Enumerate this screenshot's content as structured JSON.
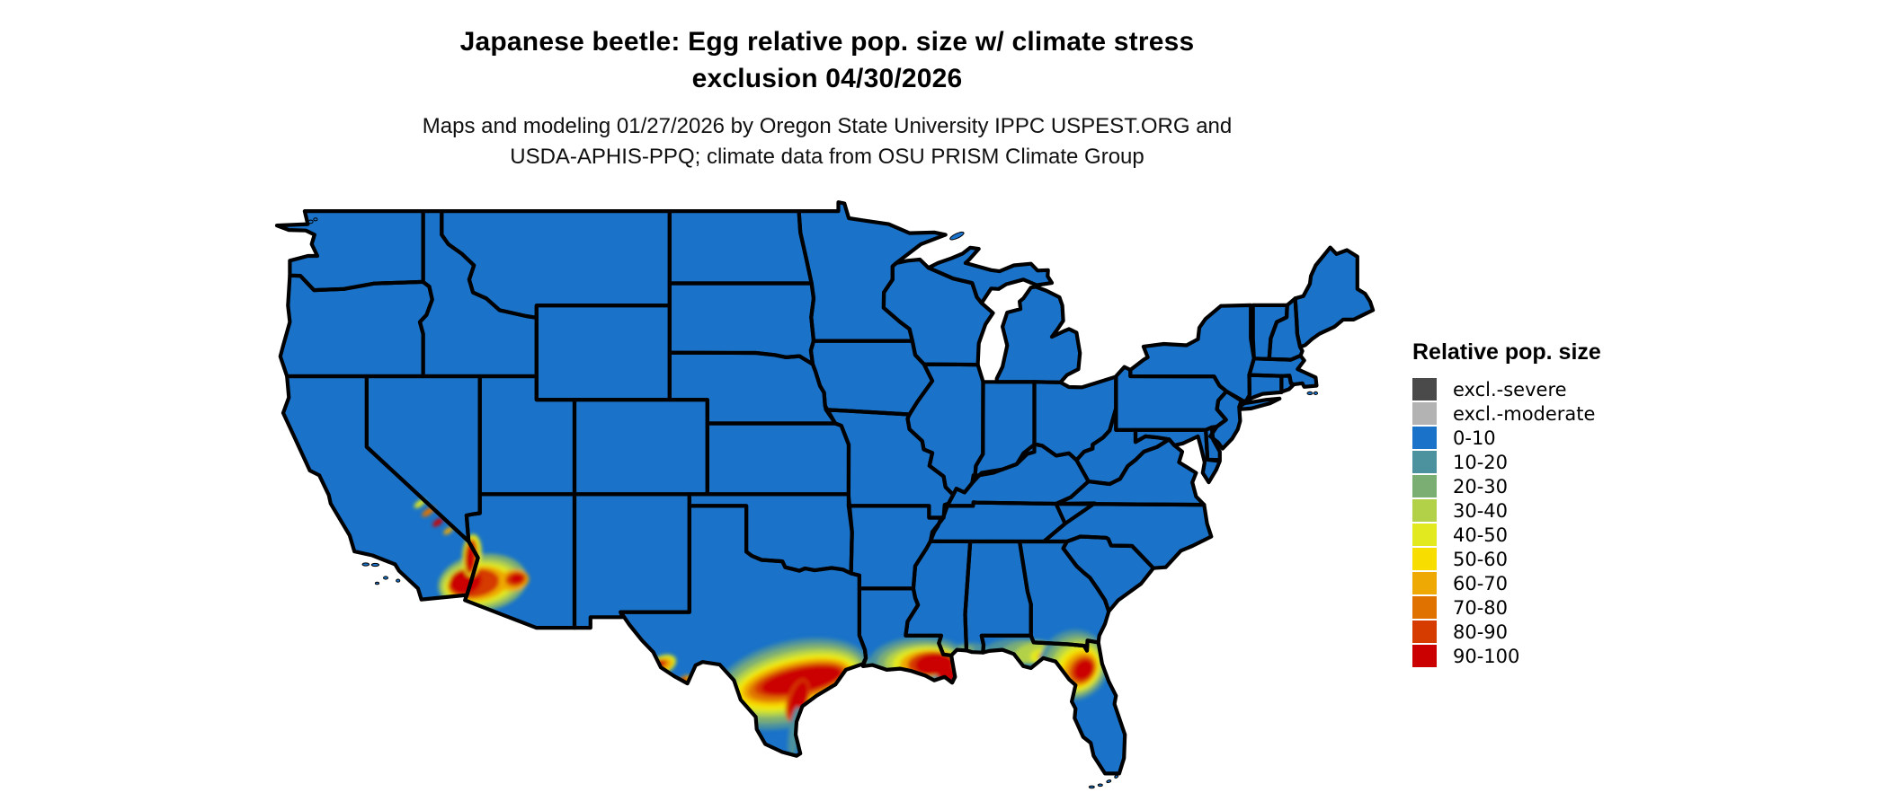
{
  "header": {
    "title_line1": "Japanese beetle: Egg relative pop. size w/ climate stress",
    "title_line2": "exclusion 04/30/2026",
    "subtitle_line1": "Maps and modeling 01/27/2026 by Oregon State University IPPC USPEST.ORG and",
    "subtitle_line2": "USDA-APHIS-PPQ; climate data from OSU PRISM Climate Group"
  },
  "legend": {
    "title": "Relative pop. size",
    "entries": [
      {
        "label": "excl.-severe",
        "color": "#4a4a4a"
      },
      {
        "label": "excl.-moderate",
        "color": "#b3b3b3"
      },
      {
        "label": "0-10",
        "color": "#1a73c9"
      },
      {
        "label": "10-20",
        "color": "#4b919e"
      },
      {
        "label": "20-30",
        "color": "#7bae73"
      },
      {
        "label": "30-40",
        "color": "#b2d148"
      },
      {
        "label": "40-50",
        "color": "#e2e91e"
      },
      {
        "label": "50-60",
        "color": "#f8dd00"
      },
      {
        "label": "60-70",
        "color": "#eea904"
      },
      {
        "label": "70-80",
        "color": "#e07300"
      },
      {
        "label": "80-90",
        "color": "#d63b00"
      },
      {
        "label": "90-100",
        "color": "#cb0000"
      }
    ]
  },
  "map": {
    "region": "contiguous United States with state borders",
    "base_value_class": "0-10",
    "base_color": "#1a73c9",
    "border_color": "#000000",
    "background": "#ffffff",
    "hotspots": [
      {
        "name": "south-texas-gulf-coast-band",
        "peak_value": "90-100",
        "layers": [
          {
            "value": "10-20",
            "color": "#4b919e",
            "lon": -97.6,
            "lat": 28.95,
            "rx": 4.3,
            "ry": 1.8,
            "rot": -14
          },
          {
            "value": "20-30",
            "color": "#7bae73",
            "lon": -97.6,
            "lat": 28.97,
            "rx": 4.0,
            "ry": 1.55,
            "rot": -14
          },
          {
            "value": "30-40",
            "color": "#b2d148",
            "lon": -97.5,
            "lat": 29.0,
            "rx": 3.65,
            "ry": 1.3,
            "rot": -14
          },
          {
            "value": "40-50",
            "color": "#e2e91e",
            "lon": -97.45,
            "lat": 29.0,
            "rx": 3.35,
            "ry": 1.1,
            "rot": -14
          },
          {
            "value": "50-60",
            "color": "#f8dd00",
            "lon": -97.4,
            "lat": 29.0,
            "rx": 3.1,
            "ry": 0.95,
            "rot": -13
          },
          {
            "value": "60-70",
            "color": "#eea904",
            "lon": -97.35,
            "lat": 29.05,
            "rx": 2.9,
            "ry": 0.82,
            "rot": -13
          },
          {
            "value": "70-80",
            "color": "#e07300",
            "lon": -97.3,
            "lat": 29.05,
            "rx": 2.65,
            "ry": 0.7,
            "rot": -13
          },
          {
            "value": "80-90",
            "color": "#d63b00",
            "lon": -97.2,
            "lat": 29.1,
            "rx": 2.4,
            "ry": 0.58,
            "rot": -12
          },
          {
            "value": "90-100",
            "color": "#cb0000",
            "lon": -97.1,
            "lat": 29.1,
            "rx": 2.15,
            "ry": 0.5,
            "rot": -12
          },
          {
            "value": "80-90",
            "color": "#d63b00",
            "lon": -97.3,
            "lat": 28.25,
            "rx": 0.55,
            "ry": 0.95,
            "rot": 18
          },
          {
            "value": "90-100",
            "color": "#cb0000",
            "lon": -97.25,
            "lat": 28.3,
            "rx": 0.4,
            "ry": 0.8,
            "rot": 18
          },
          {
            "value": "10-20",
            "color": "#4b919e",
            "lon": -97.45,
            "lat": 26.9,
            "rx": 0.3,
            "ry": 1.1,
            "rot": 8
          }
        ]
      },
      {
        "name": "rio-grande-big-bend-spots",
        "peak_value": "90-100",
        "layers": [
          {
            "value": "40-50",
            "color": "#e2e91e",
            "lon": -104.45,
            "lat": 29.75,
            "rx": 0.8,
            "ry": 0.38,
            "rot": -25
          },
          {
            "value": "60-70",
            "color": "#eea904",
            "lon": -104.45,
            "lat": 29.72,
            "rx": 0.6,
            "ry": 0.26,
            "rot": -25
          },
          {
            "value": "80-90",
            "color": "#d63b00",
            "lon": -104.55,
            "lat": 29.78,
            "rx": 0.4,
            "ry": 0.17,
            "rot": -25
          },
          {
            "value": "90-100",
            "color": "#cb0000",
            "lon": -104.65,
            "lat": 29.85,
            "rx": 0.25,
            "ry": 0.12,
            "rot": -25
          },
          {
            "value": "60-70",
            "color": "#eea904",
            "lon": -103.25,
            "lat": 29.1,
            "rx": 0.4,
            "ry": 0.18,
            "rot": -30
          },
          {
            "value": "90-100",
            "color": "#cb0000",
            "lon": -103.3,
            "lat": 29.12,
            "rx": 0.2,
            "ry": 0.1,
            "rot": -30
          }
        ]
      },
      {
        "name": "louisiana-delta",
        "peak_value": "90-100",
        "layers": [
          {
            "value": "10-20",
            "color": "#4b919e",
            "lon": -91.0,
            "lat": 30.0,
            "rx": 2.5,
            "ry": 0.95,
            "rot": -4
          },
          {
            "value": "20-30",
            "color": "#7bae73",
            "lon": -90.9,
            "lat": 29.95,
            "rx": 2.2,
            "ry": 0.8,
            "rot": -4
          },
          {
            "value": "30-40",
            "color": "#b2d148",
            "lon": -90.75,
            "lat": 29.9,
            "rx": 1.95,
            "ry": 0.7,
            "rot": -4
          },
          {
            "value": "40-50",
            "color": "#e2e91e",
            "lon": -90.6,
            "lat": 29.87,
            "rx": 1.7,
            "ry": 0.62,
            "rot": -4
          },
          {
            "value": "60-70",
            "color": "#eea904",
            "lon": -90.45,
            "lat": 29.83,
            "rx": 1.45,
            "ry": 0.55,
            "rot": -4
          },
          {
            "value": "80-90",
            "color": "#d63b00",
            "lon": -90.25,
            "lat": 29.8,
            "rx": 1.25,
            "ry": 0.5,
            "rot": -4
          },
          {
            "value": "90-100",
            "color": "#cb0000",
            "lon": -90.1,
            "lat": 29.77,
            "rx": 1.0,
            "ry": 0.45,
            "rot": -4
          },
          {
            "value": "90-100",
            "color": "#cb0000",
            "lon": -89.45,
            "lat": 29.4,
            "rx": 0.5,
            "ry": 0.42,
            "rot": 0
          }
        ]
      },
      {
        "name": "mobile-bay-coast",
        "peak_value": "20-30",
        "layers": [
          {
            "value": "10-20",
            "color": "#4b919e",
            "lon": -88.15,
            "lat": 30.45,
            "rx": 0.85,
            "ry": 0.25,
            "rot": 0
          },
          {
            "value": "20-30",
            "color": "#7bae73",
            "lon": -88.45,
            "lat": 30.42,
            "rx": 0.45,
            "ry": 0.16,
            "rot": 0
          }
        ]
      },
      {
        "name": "florida-panhandle",
        "peak_value": "60-70",
        "layers": [
          {
            "value": "10-20",
            "color": "#4b919e",
            "lon": -86.0,
            "lat": 30.38,
            "rx": 1.5,
            "ry": 0.5,
            "rot": -5
          },
          {
            "value": "20-30",
            "color": "#7bae73",
            "lon": -85.25,
            "lat": 30.3,
            "rx": 1.45,
            "ry": 0.5,
            "rot": -8
          },
          {
            "value": "30-40",
            "color": "#b2d148",
            "lon": -84.8,
            "lat": 30.25,
            "rx": 1.1,
            "ry": 0.45,
            "rot": -8
          },
          {
            "value": "40-50",
            "color": "#e2e91e",
            "lon": -84.45,
            "lat": 30.15,
            "rx": 0.6,
            "ry": 0.3,
            "rot": -10
          },
          {
            "value": "60-70",
            "color": "#eea904",
            "lon": -84.35,
            "lat": 30.12,
            "rx": 0.32,
            "ry": 0.18,
            "rot": -10
          }
        ]
      },
      {
        "name": "north-central-florida",
        "peak_value": "90-100",
        "layers": [
          {
            "value": "10-20",
            "color": "#4b919e",
            "lon": -82.75,
            "lat": 29.75,
            "rx": 1.9,
            "ry": 1.45,
            "rot": -45
          },
          {
            "value": "20-30",
            "color": "#7bae73",
            "lon": -82.7,
            "lat": 29.7,
            "rx": 1.7,
            "ry": 1.25,
            "rot": -45
          },
          {
            "value": "30-40",
            "color": "#b2d148",
            "lon": -82.6,
            "lat": 29.67,
            "rx": 1.5,
            "ry": 1.05,
            "rot": -47
          },
          {
            "value": "40-50",
            "color": "#e2e91e",
            "lon": -82.52,
            "lat": 29.62,
            "rx": 1.28,
            "ry": 0.88,
            "rot": -48
          },
          {
            "value": "50-60",
            "color": "#f8dd00",
            "lon": -82.45,
            "lat": 29.6,
            "rx": 1.12,
            "ry": 0.75,
            "rot": -48
          },
          {
            "value": "60-70",
            "color": "#eea904",
            "lon": -82.4,
            "lat": 29.58,
            "rx": 0.97,
            "ry": 0.64,
            "rot": -48
          },
          {
            "value": "70-80",
            "color": "#e07300",
            "lon": -82.32,
            "lat": 29.55,
            "rx": 0.82,
            "ry": 0.53,
            "rot": -50
          },
          {
            "value": "80-90",
            "color": "#d63b00",
            "lon": -82.27,
            "lat": 29.55,
            "rx": 0.7,
            "ry": 0.45,
            "rot": -50
          },
          {
            "value": "90-100",
            "color": "#cb0000",
            "lon": -82.22,
            "lat": 29.55,
            "rx": 0.57,
            "ry": 0.36,
            "rot": -50
          }
        ]
      },
      {
        "name": "colorado-river-imperial-yuma-phoenix",
        "peak_value": "90-100",
        "layers": [
          {
            "value": "20-30",
            "color": "#7bae73",
            "lon": -113.9,
            "lat": 33.25,
            "rx": 2.35,
            "ry": 1.2,
            "rot": -8
          },
          {
            "value": "30-40",
            "color": "#b2d148",
            "lon": -114.0,
            "lat": 33.22,
            "rx": 2.1,
            "ry": 1.0,
            "rot": -8
          },
          {
            "value": "40-50",
            "color": "#e2e91e",
            "lon": -114.05,
            "lat": 33.2,
            "rx": 1.85,
            "ry": 0.85,
            "rot": -8
          },
          {
            "value": "60-70",
            "color": "#eea904",
            "lon": -114.15,
            "lat": 33.2,
            "rx": 1.6,
            "ry": 0.72,
            "rot": -8
          },
          {
            "value": "80-90",
            "color": "#d63b00",
            "lon": -114.35,
            "lat": 33.22,
            "rx": 1.35,
            "ry": 0.6,
            "rot": -8
          },
          {
            "value": "90-100",
            "color": "#cb0000",
            "lon": -114.8,
            "lat": 33.3,
            "rx": 0.85,
            "ry": 0.52,
            "rot": -12
          },
          {
            "value": "40-50",
            "color": "#e2e91e",
            "lon": -114.45,
            "lat": 34.4,
            "rx": 0.5,
            "ry": 0.9,
            "rot": 4
          },
          {
            "value": "80-90",
            "color": "#d63b00",
            "lon": -114.5,
            "lat": 34.35,
            "rx": 0.33,
            "ry": 0.75,
            "rot": 4
          },
          {
            "value": "90-100",
            "color": "#cb0000",
            "lon": -114.55,
            "lat": 34.25,
            "rx": 0.22,
            "ry": 0.6,
            "rot": 4
          },
          {
            "value": "60-70",
            "color": "#eea904",
            "lon": -112.25,
            "lat": 33.35,
            "rx": 0.8,
            "ry": 0.45,
            "rot": -10
          },
          {
            "value": "80-90",
            "color": "#d63b00",
            "lon": -112.15,
            "lat": 33.4,
            "rx": 0.55,
            "ry": 0.3,
            "rot": -10
          },
          {
            "value": "90-100",
            "color": "#cb0000",
            "lon": -112.1,
            "lat": 33.42,
            "rx": 0.35,
            "ry": 0.2,
            "rot": -10
          }
        ]
      },
      {
        "name": "mojave-death-valley-streaks",
        "peak_value": "90-100",
        "layers": [
          {
            "value": "40-50",
            "color": "#e2e91e",
            "lon": -117.2,
            "lat": 36.6,
            "rx": 0.35,
            "ry": 0.12,
            "rot": -35
          },
          {
            "value": "70-80",
            "color": "#e07300",
            "lon": -116.75,
            "lat": 36.25,
            "rx": 0.4,
            "ry": 0.13,
            "rot": -35
          },
          {
            "value": "90-100",
            "color": "#cb0000",
            "lon": -116.25,
            "lat": 35.8,
            "rx": 0.32,
            "ry": 0.12,
            "rot": -35
          },
          {
            "value": "60-70",
            "color": "#eea904",
            "lon": -115.7,
            "lat": 35.45,
            "rx": 0.3,
            "ry": 0.11,
            "rot": -35
          }
        ]
      }
    ]
  }
}
